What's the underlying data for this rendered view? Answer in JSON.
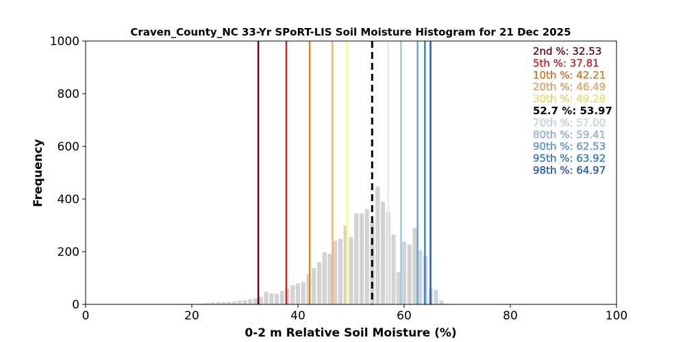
{
  "chart_data": {
    "type": "bar",
    "title": "Craven_County_NC 33-Yr SPoRT-LIS Soil Moisture Histogram for 21 Dec 2025",
    "xlabel": "0-2 m Relative Soil Moisture (%)",
    "ylabel": "Frequency",
    "xlim": [
      0,
      100
    ],
    "ylim": [
      0,
      1000
    ],
    "xticks": [
      0,
      20,
      40,
      60,
      80,
      100
    ],
    "yticks": [
      0,
      200,
      400,
      600,
      800,
      1000
    ],
    "grid": false,
    "bar_color": "#d3d3d3",
    "bins": [
      {
        "x": 20,
        "value": 1
      },
      {
        "x": 21,
        "value": 2
      },
      {
        "x": 22,
        "value": 3
      },
      {
        "x": 23,
        "value": 5
      },
      {
        "x": 24,
        "value": 7
      },
      {
        "x": 25,
        "value": 9
      },
      {
        "x": 26,
        "value": 8
      },
      {
        "x": 27,
        "value": 9
      },
      {
        "x": 28,
        "value": 11
      },
      {
        "x": 29,
        "value": 14
      },
      {
        "x": 30,
        "value": 16
      },
      {
        "x": 31,
        "value": 20
      },
      {
        "x": 32,
        "value": 23
      },
      {
        "x": 33,
        "value": 28
      },
      {
        "x": 34,
        "value": 48
      },
      {
        "x": 35,
        "value": 43
      },
      {
        "x": 36,
        "value": 40
      },
      {
        "x": 37,
        "value": 52
      },
      {
        "x": 38,
        "value": 58
      },
      {
        "x": 39,
        "value": 72
      },
      {
        "x": 40,
        "value": 80
      },
      {
        "x": 41,
        "value": 85
      },
      {
        "x": 42,
        "value": 115
      },
      {
        "x": 43,
        "value": 138
      },
      {
        "x": 44,
        "value": 160
      },
      {
        "x": 45,
        "value": 198
      },
      {
        "x": 46,
        "value": 192
      },
      {
        "x": 47,
        "value": 242
      },
      {
        "x": 48,
        "value": 248
      },
      {
        "x": 49,
        "value": 300
      },
      {
        "x": 50,
        "value": 255
      },
      {
        "x": 51,
        "value": 346
      },
      {
        "x": 52,
        "value": 345
      },
      {
        "x": 53,
        "value": 362
      },
      {
        "x": 54,
        "value": 315
      },
      {
        "x": 55,
        "value": 448
      },
      {
        "x": 56,
        "value": 390
      },
      {
        "x": 57,
        "value": 350
      },
      {
        "x": 58,
        "value": 265
      },
      {
        "x": 59,
        "value": 122
      },
      {
        "x": 60,
        "value": 238
      },
      {
        "x": 61,
        "value": 228
      },
      {
        "x": 62,
        "value": 290
      },
      {
        "x": 63,
        "value": 205
      },
      {
        "x": 64,
        "value": 185
      },
      {
        "x": 65,
        "value": 60
      },
      {
        "x": 66,
        "value": 55
      },
      {
        "x": 67,
        "value": 15
      },
      {
        "x": 68,
        "value": 3
      }
    ],
    "percentile_lines": [
      {
        "label": "2nd %",
        "value": 32.53,
        "display": "2nd %: 32.53",
        "color": "#67000d",
        "dashed": false
      },
      {
        "label": "5th %",
        "value": 37.81,
        "display": "5th %: 37.81",
        "color": "#d7191c",
        "dashed": false
      },
      {
        "label": "10th %",
        "value": 42.21,
        "display": "10th %: 42.21",
        "color": "#e6821e",
        "dashed": false
      },
      {
        "label": "20th %",
        "value": 46.49,
        "display": "20th %: 46.49",
        "color": "#f5b46a",
        "dashed": false
      },
      {
        "label": "30th %",
        "value": 49.28,
        "display": "30th %: 49.28",
        "color": "#ffff70",
        "dashed": false
      },
      {
        "label": "52.7 %",
        "value": 53.97,
        "display": "52.7 %: 53.97",
        "color": "#000000",
        "dashed": true
      },
      {
        "label": "70th %",
        "value": 57.0,
        "display": "70th %: 57.00",
        "color": "#d6f2ff",
        "dashed": false
      },
      {
        "label": "80th %",
        "value": 59.41,
        "display": "80th %: 59.41",
        "color": "#9ecae1",
        "dashed": false
      },
      {
        "label": "90th %",
        "value": 62.53,
        "display": "90th %: 62.53",
        "color": "#5aa9e0",
        "dashed": false
      },
      {
        "label": "95th %",
        "value": 63.92,
        "display": "95th %: 63.92",
        "color": "#2e86d8",
        "dashed": false
      },
      {
        "label": "98th %",
        "value": 64.97,
        "display": "98th %: 64.97",
        "color": "#1c5fb8",
        "dashed": false
      }
    ],
    "legend_placement": "top-right"
  }
}
